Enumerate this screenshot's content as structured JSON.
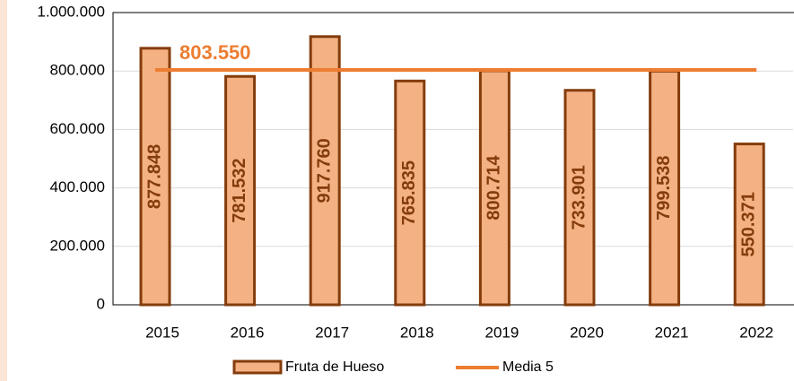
{
  "chart_data": {
    "type": "bar",
    "categories": [
      "2015",
      "2016",
      "2017",
      "2018",
      "2019",
      "2020",
      "2021",
      "2022"
    ],
    "series": [
      {
        "name": "Fruta de Hueso",
        "color": "#f4b183",
        "edge_color": "#843c0c",
        "values": [
          877848,
          781532,
          917760,
          765835,
          800714,
          733901,
          799538,
          550371
        ],
        "value_labels": [
          "877.848",
          "781.532",
          "917.760",
          "765.835",
          "800.714",
          "733.901",
          "799.538",
          "550.371"
        ]
      }
    ],
    "mean_line": {
      "name": "Media 5",
      "color": "#ed7d31",
      "value": 803550,
      "label": "803.550"
    },
    "ylim": [
      0,
      1000000
    ],
    "yticks": [
      0,
      {
        "value": 200000,
        "label": "200.000"
      },
      {
        "value": 400000,
        "label": "400.000"
      },
      {
        "value": 600000,
        "label": "600.000"
      },
      {
        "value": 800000,
        "label": "800.000"
      },
      {
        "value": 1000000,
        "label": "1.000.000"
      }
    ],
    "grid": true,
    "legend": "bottom"
  }
}
